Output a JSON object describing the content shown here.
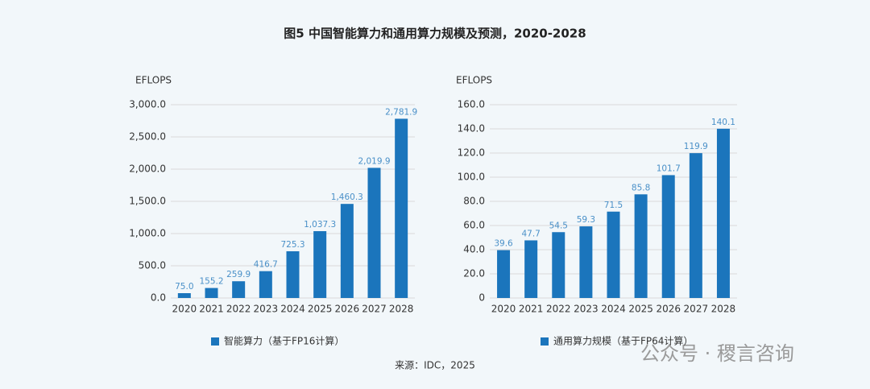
{
  "title": "图5 中国智能算力和通用算力规模及预测，2020-2028",
  "source": "来源：IDC，2025",
  "watermark": "公众号 · 稷言咨询",
  "chart_data": [
    {
      "type": "bar",
      "y_label": "EFLOPS",
      "categories": [
        "2020",
        "2021",
        "2022",
        "2023",
        "2024",
        "2025",
        "2026",
        "2027",
        "2028"
      ],
      "series": [
        {
          "name": "智能算力（基于FP16计算）",
          "color": "#1b75bc",
          "values": [
            75.0,
            155.2,
            259.9,
            416.7,
            725.3,
            1037.3,
            1460.3,
            2019.9,
            2781.9
          ],
          "value_labels": [
            "75.0",
            "155.2",
            "259.9",
            "416.7",
            "725.3",
            "1,037.3",
            "1,460.3",
            "2,019.9",
            "2,781.9"
          ]
        }
      ],
      "ylim": [
        0,
        3000
      ],
      "yticks": [
        {
          "value": 0,
          "label": "0.0"
        },
        {
          "value": 500,
          "label": "500.0"
        },
        {
          "value": 1000,
          "label": "1,000.0"
        },
        {
          "value": 1500,
          "label": "1,500.0"
        },
        {
          "value": 2000,
          "label": "2,000.0"
        },
        {
          "value": 2500,
          "label": "2,500.0"
        },
        {
          "value": 3000,
          "label": "3,000.0"
        }
      ],
      "grid": true
    },
    {
      "type": "bar",
      "y_label": "EFLOPS",
      "categories": [
        "2020",
        "2021",
        "2022",
        "2023",
        "2024",
        "2025",
        "2026",
        "2027",
        "2028"
      ],
      "series": [
        {
          "name": "通用算力规模（基于FP64计算）",
          "color": "#1b75bc",
          "values": [
            39.6,
            47.7,
            54.5,
            59.3,
            71.5,
            85.8,
            101.7,
            119.9,
            140.1
          ]
        }
      ],
      "ylim": [
        0,
        160
      ],
      "yticks": [
        0,
        {
          "value": 20,
          "label": "20.0"
        },
        {
          "value": 40,
          "label": "40.0"
        },
        {
          "value": 60,
          "label": "60.0"
        },
        {
          "value": 80,
          "label": "80.0"
        },
        {
          "value": 100,
          "label": "100.0"
        },
        {
          "value": 120,
          "label": "120.0"
        },
        {
          "value": 140,
          "label": "140.0"
        },
        {
          "value": 160,
          "label": "160.0"
        }
      ],
      "grid": true
    }
  ]
}
